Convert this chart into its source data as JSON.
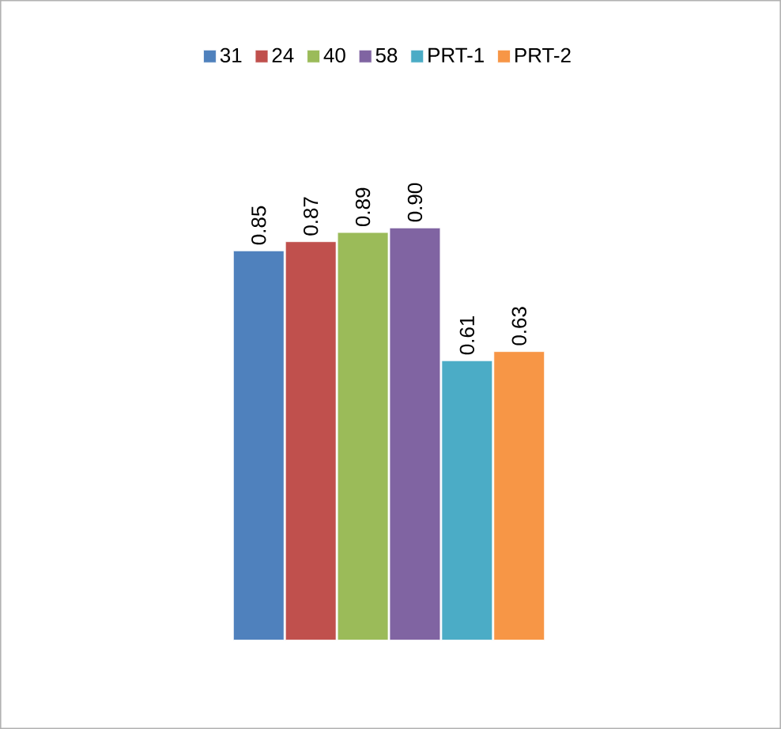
{
  "chart_data": {
    "type": "bar",
    "categories": [
      null
    ],
    "legend": "top",
    "series": [
      {
        "name": "31",
        "color": "#4f81bd",
        "values": [
          0.85
        ],
        "value_labels": [
          "0.85"
        ]
      },
      {
        "name": "24",
        "color": "#c0504d",
        "values": [
          0.87
        ],
        "value_labels": [
          "0.87"
        ]
      },
      {
        "name": "40",
        "color": "#9bbb59",
        "values": [
          0.89
        ],
        "value_labels": [
          "0.89"
        ]
      },
      {
        "name": "58",
        "color": "#8064a2",
        "values": [
          0.9
        ],
        "value_labels": [
          "0.90"
        ]
      },
      {
        "name": "PRT-1",
        "color": "#4bacc6",
        "values": [
          0.61
        ],
        "value_labels": [
          "0.61"
        ]
      },
      {
        "name": "PRT-2",
        "color": "#f79646",
        "values": [
          0.63
        ],
        "value_labels": [
          "0.63"
        ]
      }
    ]
  }
}
